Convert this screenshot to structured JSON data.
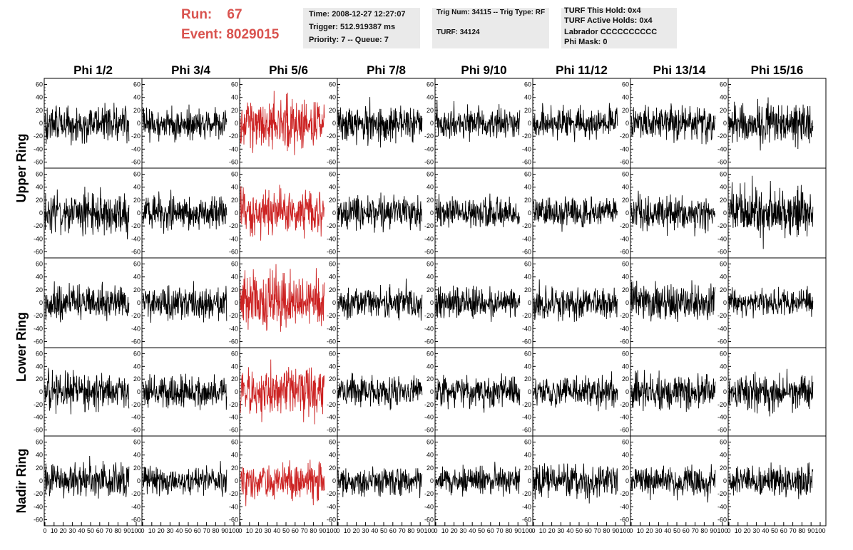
{
  "header": {
    "run_label": "Run:",
    "run_value": "67",
    "event_label": "Event:",
    "event_value": "8029015",
    "time_line": "Time: 2008-12-27 12:27:07",
    "trigger_line": "Trigger: 512.919387 ms",
    "priority_line": "Priority: 7 -- Queue: 7",
    "trig_line": "Trig Num: 34115 -- Trig Type: RF",
    "turf_line": "TURF: 34124",
    "turf_hold_line": "TURF This Hold: 0x4",
    "turf_active_line": "TURF Active Holds: 0x4",
    "labrador_line": "Labrador CCCCCCCCCC",
    "phi_mask_line": "Phi Mask: 0"
  },
  "chart_data": {
    "type": "line",
    "layout": "grid",
    "columns": [
      "Phi 1/2",
      "Phi 3/4",
      "Phi 5/6",
      "Phi 7/8",
      "Phi 9/10",
      "Phi 11/12",
      "Phi 13/14",
      "Phi 15/16"
    ],
    "row_groups": [
      {
        "label": "Upper Ring",
        "rows": [
          0,
          1
        ]
      },
      {
        "label": "Lower Ring",
        "rows": [
          2,
          3
        ]
      },
      {
        "label": "Nadir Ring",
        "rows": [
          4
        ]
      }
    ],
    "rows": 5,
    "highlight_column": 2,
    "colors": {
      "trace": "#000000",
      "highlight": "#cc2222",
      "grid": "#000000"
    },
    "x_range": [
      0,
      100
    ],
    "y_range": [
      -65,
      65
    ],
    "y_ticks": [
      -60,
      -40,
      -20,
      0,
      20,
      40,
      60
    ],
    "y_tick_labels": [
      "-60",
      "-40",
      "-20",
      "0",
      "20",
      "40",
      "60"
    ],
    "x_ticks": [
      0,
      10,
      20,
      30,
      40,
      50,
      60,
      70,
      80,
      90,
      100
    ],
    "x_tick_labels": [
      "0",
      "10",
      "20",
      "30",
      "40",
      "50",
      "60",
      "70",
      "80",
      "90",
      "100"
    ],
    "samples_per_trace": 260,
    "trace_extent": [
      0,
      92
    ],
    "amplitude_rms": [
      [
        11,
        9,
        14,
        10,
        9,
        9,
        10,
        12
      ],
      [
        12,
        10,
        12,
        10,
        9,
        9,
        10,
        14
      ],
      [
        10,
        9,
        16,
        9,
        9,
        9,
        11,
        8
      ],
      [
        11,
        10,
        14,
        9,
        9,
        9,
        10,
        10
      ],
      [
        10,
        8,
        10,
        8,
        8,
        10,
        9,
        9
      ]
    ],
    "seeds": [
      [
        101,
        102,
        103,
        104,
        105,
        106,
        107,
        108
      ],
      [
        201,
        202,
        203,
        204,
        205,
        206,
        207,
        208
      ],
      [
        301,
        302,
        303,
        304,
        305,
        306,
        307,
        308
      ],
      [
        401,
        402,
        403,
        404,
        405,
        406,
        407,
        408
      ],
      [
        501,
        502,
        503,
        504,
        505,
        506,
        507,
        508
      ]
    ]
  }
}
